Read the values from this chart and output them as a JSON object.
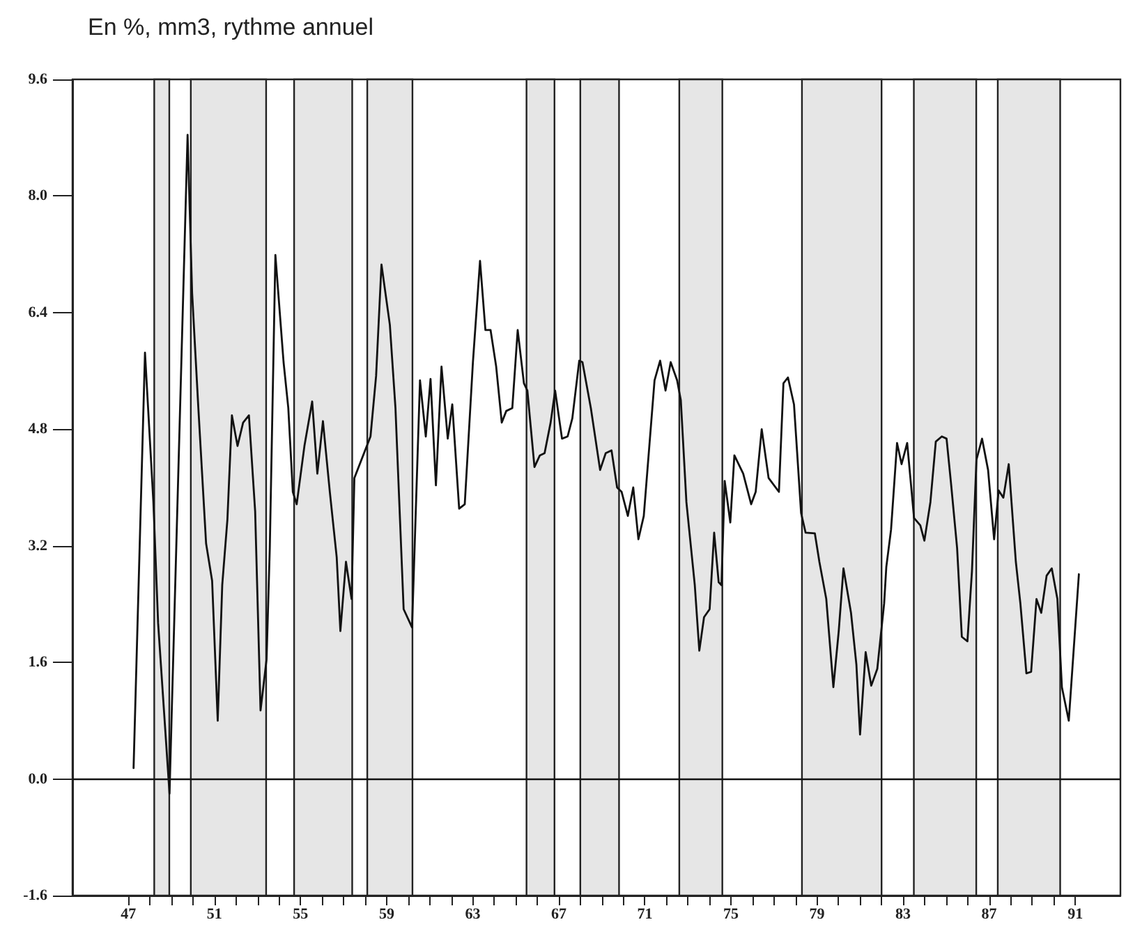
{
  "chart_data": {
    "type": "line",
    "title": "En %, mm3, rythme annuel",
    "xlim": [
      44.4,
      93.1
    ],
    "xticks": [
      47,
      {
        "value": 48,
        "label": null
      },
      {
        "value": 49,
        "label": null
      },
      {
        "value": 50,
        "label": null
      },
      51,
      {
        "value": 52,
        "label": null
      },
      {
        "value": 53,
        "label": null
      },
      {
        "value": 54,
        "label": null
      },
      55,
      {
        "value": 56,
        "label": null
      },
      {
        "value": 57,
        "label": null
      },
      {
        "value": 58,
        "label": null
      },
      59,
      {
        "value": 60,
        "label": null
      },
      {
        "value": 61,
        "label": null
      },
      {
        "value": 62,
        "label": null
      },
      63,
      {
        "value": 64,
        "label": null
      },
      {
        "value": 65,
        "label": null
      },
      {
        "value": 66,
        "label": null
      },
      67,
      {
        "value": 68,
        "label": null
      },
      {
        "value": 69,
        "label": null
      },
      {
        "value": 70,
        "label": null
      },
      71,
      {
        "value": 72,
        "label": null
      },
      {
        "value": 73,
        "label": null
      },
      {
        "value": 74,
        "label": null
      },
      75,
      {
        "value": 76,
        "label": null
      },
      {
        "value": 77,
        "label": null
      },
      {
        "value": 78,
        "label": null
      },
      79,
      {
        "value": 80,
        "label": null
      },
      {
        "value": 81,
        "label": null
      },
      {
        "value": 82,
        "label": null
      },
      83,
      {
        "value": 84,
        "label": null
      },
      {
        "value": 85,
        "label": null
      },
      {
        "value": 86,
        "label": null
      },
      87,
      {
        "value": 88,
        "label": null
      },
      {
        "value": 89,
        "label": null
      },
      {
        "value": 90,
        "label": null
      },
      91
    ],
    "ylim": [
      -1.6,
      9.6
    ],
    "yticks": [
      -1.6,
      {
        "value": 0,
        "label": "0.0"
      },
      1.6,
      3.2,
      4.8,
      6.4,
      {
        "value": 8,
        "label": "8.0"
      },
      9.6
    ],
    "grid": false,
    "marker": "none",
    "line_style": "solid",
    "series": [
      {
        "color": "#111111",
        "x": [
          47.24,
          47.77,
          48.16,
          48.38,
          48.91,
          49.75,
          49.96,
          50.25,
          50.61,
          50.89,
          51.15,
          51.36,
          51.6,
          51.81,
          52.07,
          52.33,
          52.6,
          52.89,
          53.14,
          53.42,
          53.57,
          53.83,
          54.21,
          54.43,
          54.64,
          54.82,
          55.18,
          55.54,
          55.78,
          56.04,
          56.36,
          56.68,
          56.85,
          57.11,
          57.37,
          57.5,
          58.25,
          58.51,
          58.76,
          59.15,
          59.41,
          59.79,
          60.18,
          60.55,
          60.82,
          61.04,
          61.29,
          61.55,
          61.84,
          62.05,
          62.37,
          62.63,
          63.01,
          63.34,
          63.59,
          63.83,
          64.09,
          64.35,
          64.56,
          64.84,
          65.09,
          65.38,
          65.54,
          65.87,
          66.12,
          66.34,
          66.62,
          66.83,
          67.15,
          67.41,
          67.63,
          67.95,
          68.1,
          68.49,
          68.92,
          69.18,
          69.45,
          69.71,
          69.92,
          70.21,
          70.46,
          70.7,
          70.95,
          71.45,
          71.71,
          71.96,
          72.2,
          72.5,
          72.67,
          72.93,
          73.32,
          73.53,
          73.75,
          74.01,
          74.22,
          74.43,
          74.56,
          74.71,
          74.97,
          75.16,
          75.57,
          75.94,
          76.15,
          76.43,
          76.75,
          77.23,
          77.44,
          77.65,
          77.93,
          78.26,
          78.47,
          78.9,
          79.11,
          79.43,
          79.76,
          80.01,
          80.23,
          80.58,
          80.83,
          81.0,
          81.26,
          81.52,
          81.8,
          82.12,
          82.22,
          82.44,
          82.72,
          82.93,
          83.19,
          83.51,
          83.8,
          83.99,
          84.27,
          84.52,
          84.8,
          85.02,
          85.23,
          85.51,
          85.73,
          85.99,
          86.2,
          86.41,
          86.67,
          86.95,
          87.23,
          87.44,
          87.66,
          87.91,
          88.24,
          88.45,
          88.73,
          88.95,
          89.2,
          89.42,
          89.67,
          89.91,
          90.17,
          90.38,
          90.7,
          91.17
        ],
        "values": [
          0.15,
          5.85,
          3.8,
          2.14,
          -0.2,
          8.84,
          6.67,
          5.09,
          3.23,
          2.72,
          0.8,
          2.66,
          3.56,
          4.99,
          4.57,
          4.89,
          4.99,
          3.67,
          0.94,
          1.64,
          3.17,
          7.19,
          5.72,
          5.09,
          3.94,
          3.77,
          4.57,
          5.18,
          4.19,
          4.91,
          3.94,
          3.04,
          2.03,
          2.98,
          2.47,
          4.13,
          4.7,
          5.53,
          7.06,
          6.23,
          5.09,
          2.33,
          2.08,
          5.47,
          4.7,
          5.49,
          4.03,
          5.66,
          4.67,
          5.14,
          3.71,
          3.77,
          5.72,
          7.11,
          6.16,
          6.16,
          5.66,
          4.89,
          5.05,
          5.09,
          6.16,
          5.43,
          5.33,
          4.28,
          4.44,
          4.47,
          4.89,
          5.33,
          4.67,
          4.7,
          4.95,
          5.74,
          5.72,
          5.09,
          4.24,
          4.47,
          4.51,
          4.0,
          3.94,
          3.61,
          4.0,
          3.29,
          3.61,
          5.47,
          5.74,
          5.33,
          5.72,
          5.47,
          5.2,
          3.8,
          2.66,
          1.76,
          2.22,
          2.33,
          3.38,
          2.7,
          2.66,
          4.09,
          3.52,
          4.44,
          4.19,
          3.77,
          3.94,
          4.8,
          4.13,
          3.94,
          5.43,
          5.51,
          5.14,
          3.65,
          3.38,
          3.37,
          2.98,
          2.47,
          1.26,
          2.03,
          2.89,
          2.28,
          1.57,
          0.61,
          1.74,
          1.28,
          1.51,
          2.41,
          2.91,
          3.42,
          4.61,
          4.32,
          4.61,
          3.58,
          3.48,
          3.27,
          3.8,
          4.63,
          4.7,
          4.67,
          4.05,
          3.17,
          1.95,
          1.89,
          2.85,
          4.38,
          4.67,
          4.24,
          3.29,
          3.96,
          3.86,
          4.32,
          2.98,
          2.41,
          1.45,
          1.47,
          2.47,
          2.28,
          2.79,
          2.89,
          2.47,
          1.26,
          0.8,
          2.81
        ]
      }
    ],
    "ref_lines": [
      {
        "axis": "y",
        "value": 0,
        "color": "#111111",
        "line_style": "solid"
      }
    ],
    "bands": [
      {
        "axis": "x",
        "from": 48.2,
        "to": 48.9,
        "color": "#e6e6e6"
      },
      {
        "axis": "x",
        "from": 49.9,
        "to": 53.4,
        "color": "#e6e6e6"
      },
      {
        "axis": "x",
        "from": 54.7,
        "to": 57.4,
        "color": "#e6e6e6"
      },
      {
        "axis": "x",
        "from": 58.1,
        "to": 60.2,
        "color": "#e6e6e6"
      },
      {
        "axis": "x",
        "from": 65.5,
        "to": 66.8,
        "color": "#e6e6e6"
      },
      {
        "axis": "x",
        "from": 68.0,
        "to": 69.8,
        "color": "#e6e6e6"
      },
      {
        "axis": "x",
        "from": 72.6,
        "to": 74.6,
        "color": "#e6e6e6"
      },
      {
        "axis": "x",
        "from": 78.3,
        "to": 82.0,
        "color": "#e6e6e6"
      },
      {
        "axis": "x",
        "from": 83.5,
        "to": 86.4,
        "color": "#e6e6e6"
      },
      {
        "axis": "x",
        "from": 87.4,
        "to": 90.3,
        "color": "#e6e6e6"
      }
    ]
  }
}
